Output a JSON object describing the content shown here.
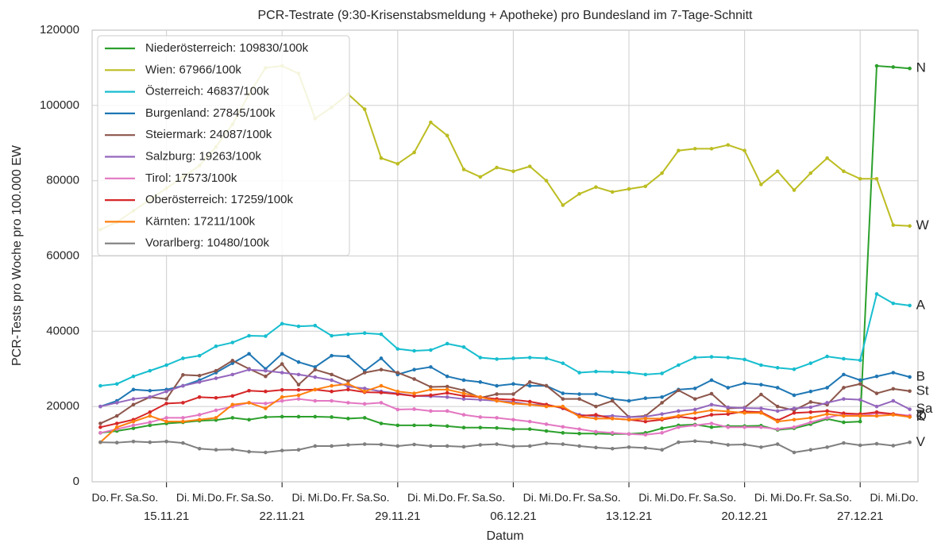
{
  "chart_data": {
    "type": "line",
    "title": "PCR-Testrate (9:30-Krisenstabsmeldung + Apotheke) pro Bundesland im 7-Tage-Schnitt",
    "xlabel": "Datum",
    "ylabel": "PCR-Tests pro Woche pro 100.000 EW",
    "x": [
      "2021-11-11",
      "2021-11-12",
      "2021-11-13",
      "2021-11-14",
      "2021-11-15",
      "2021-11-16",
      "2021-11-17",
      "2021-11-18",
      "2021-11-19",
      "2021-11-20",
      "2021-11-21",
      "2021-11-22",
      "2021-11-23",
      "2021-11-24",
      "2021-11-25",
      "2021-11-26",
      "2021-11-27",
      "2021-11-28",
      "2021-11-29",
      "2021-11-30",
      "2021-12-01",
      "2021-12-02",
      "2021-12-03",
      "2021-12-04",
      "2021-12-05",
      "2021-12-06",
      "2021-12-07",
      "2021-12-08",
      "2021-12-09",
      "2021-12-10",
      "2021-12-11",
      "2021-12-12",
      "2021-12-13",
      "2021-12-14",
      "2021-12-15",
      "2021-12-16",
      "2021-12-17",
      "2021-12-18",
      "2021-12-19",
      "2021-12-20",
      "2021-12-21",
      "2021-12-22",
      "2021-12-23",
      "2021-12-24",
      "2021-12-25",
      "2021-12-26",
      "2021-12-27",
      "2021-12-28",
      "2021-12-29",
      "2021-12-30"
    ],
    "xlim": [
      "2021-11-10T12:00:00Z",
      "2021-12-30T12:00:00Z"
    ],
    "xticks": [
      {
        "value": "2021-11-15",
        "label": "15.11.21"
      },
      {
        "value": "2021-11-22",
        "label": "22.11.21"
      },
      {
        "value": "2021-11-29",
        "label": "29.11.21"
      },
      {
        "value": "2021-12-06",
        "label": "06.12.21"
      },
      {
        "value": "2021-12-13",
        "label": "13.12.21"
      },
      {
        "value": "2021-12-20",
        "label": "20.12.21"
      },
      {
        "value": "2021-12-27",
        "label": "27.12.21"
      }
    ],
    "xticks_minor": [
      {
        "value": "2021-11-11",
        "label": "Do."
      },
      {
        "value": "2021-11-12",
        "label": "Fr."
      },
      {
        "value": "2021-11-13",
        "label": "Sa."
      },
      {
        "value": "2021-11-14",
        "label": "So."
      },
      {
        "value": "2021-11-16",
        "label": "Di."
      },
      {
        "value": "2021-11-17",
        "label": "Mi."
      },
      {
        "value": "2021-11-18",
        "label": "Do."
      },
      {
        "value": "2021-11-19",
        "label": "Fr."
      },
      {
        "value": "2021-11-20",
        "label": "Sa."
      },
      {
        "value": "2021-11-21",
        "label": "So."
      },
      {
        "value": "2021-11-23",
        "label": "Di."
      },
      {
        "value": "2021-11-24",
        "label": "Mi."
      },
      {
        "value": "2021-11-25",
        "label": "Do."
      },
      {
        "value": "2021-11-26",
        "label": "Fr."
      },
      {
        "value": "2021-11-27",
        "label": "Sa."
      },
      {
        "value": "2021-11-28",
        "label": "So."
      },
      {
        "value": "2021-11-30",
        "label": "Di."
      },
      {
        "value": "2021-12-01",
        "label": "Mi."
      },
      {
        "value": "2021-12-02",
        "label": "Do."
      },
      {
        "value": "2021-12-03",
        "label": "Fr."
      },
      {
        "value": "2021-12-04",
        "label": "Sa."
      },
      {
        "value": "2021-12-05",
        "label": "So."
      },
      {
        "value": "2021-12-07",
        "label": "Di."
      },
      {
        "value": "2021-12-08",
        "label": "Mi."
      },
      {
        "value": "2021-12-09",
        "label": "Do."
      },
      {
        "value": "2021-12-10",
        "label": "Fr."
      },
      {
        "value": "2021-12-11",
        "label": "Sa."
      },
      {
        "value": "2021-12-12",
        "label": "So."
      },
      {
        "value": "2021-12-14",
        "label": "Di."
      },
      {
        "value": "2021-12-15",
        "label": "Mi."
      },
      {
        "value": "2021-12-16",
        "label": "Do."
      },
      {
        "value": "2021-12-17",
        "label": "Fr."
      },
      {
        "value": "2021-12-18",
        "label": "Sa."
      },
      {
        "value": "2021-12-19",
        "label": "So."
      },
      {
        "value": "2021-12-21",
        "label": "Di."
      },
      {
        "value": "2021-12-22",
        "label": "Mi."
      },
      {
        "value": "2021-12-23",
        "label": "Do."
      },
      {
        "value": "2021-12-24",
        "label": "Fr."
      },
      {
        "value": "2021-12-25",
        "label": "Sa."
      },
      {
        "value": "2021-12-26",
        "label": "So."
      },
      {
        "value": "2021-12-28",
        "label": "Di."
      },
      {
        "value": "2021-12-29",
        "label": "Mi."
      },
      {
        "value": "2021-12-30",
        "label": "Do."
      }
    ],
    "ylim": [
      0,
      120000
    ],
    "yticks": [
      0,
      20000,
      40000,
      60000,
      80000,
      100000,
      120000
    ],
    "grid": true,
    "legend": "upper left",
    "series": [
      {
        "name": "Niederösterreich: 109830/100k",
        "label": "N",
        "color": "#2ca02c",
        "values": [
          13000,
          13500,
          14200,
          15000,
          15500,
          15800,
          16200,
          16400,
          17000,
          16500,
          17200,
          17300,
          17300,
          17300,
          17200,
          16800,
          17000,
          15500,
          15000,
          15000,
          15000,
          14800,
          14400,
          14400,
          14300,
          14000,
          14000,
          13500,
          13000,
          12800,
          12800,
          12700,
          12700,
          13000,
          14200,
          15000,
          15200,
          14500,
          14800,
          14800,
          14900,
          13800,
          14200,
          15300,
          16700,
          15800,
          16000,
          110500,
          110200,
          109830
        ]
      },
      {
        "name": "Wien: 67966/100k",
        "label": "W",
        "color": "#bcbd22",
        "values": [
          67000,
          69000,
          72000,
          75000,
          78000,
          81000,
          84000,
          89000,
          95000,
          103000,
          110000,
          110500,
          108500,
          96500,
          99500,
          103000,
          99000,
          86000,
          84500,
          87500,
          95500,
          92000,
          83000,
          81000,
          83500,
          82500,
          83800,
          80000,
          73500,
          76500,
          78300,
          77000,
          77800,
          78500,
          82000,
          88000,
          88500,
          88500,
          89500,
          88000,
          79000,
          82500,
          77500,
          82000,
          86000,
          82500,
          80500,
          80500,
          68200,
          67966
        ]
      },
      {
        "name": "Österreich: 46837/100k",
        "label": "A",
        "color": "#17becf",
        "values": [
          25500,
          26000,
          28000,
          29500,
          31000,
          32800,
          33500,
          36000,
          37000,
          38800,
          38700,
          42000,
          41300,
          41500,
          38800,
          39200,
          39500,
          39200,
          35300,
          34800,
          35000,
          36700,
          35800,
          33000,
          32600,
          32800,
          33000,
          32800,
          31500,
          29000,
          29300,
          29200,
          29000,
          28500,
          28800,
          31000,
          33000,
          33200,
          33000,
          32500,
          31000,
          30300,
          29900,
          31500,
          33300,
          32700,
          32300,
          49900,
          47400,
          46837
        ]
      },
      {
        "name": "Burgenland: 27845/100k",
        "label": "B",
        "color": "#1f77b4",
        "values": [
          20000,
          21500,
          24500,
          24200,
          24500,
          25500,
          27000,
          29000,
          31500,
          34000,
          30000,
          34000,
          31800,
          30500,
          33500,
          33300,
          29500,
          32800,
          28500,
          29800,
          30500,
          28000,
          27000,
          26500,
          25500,
          26000,
          25500,
          25500,
          23500,
          23300,
          23300,
          22000,
          21500,
          22200,
          22500,
          24500,
          24800,
          27000,
          25000,
          26200,
          25800,
          25000,
          23000,
          24000,
          25000,
          28500,
          27000,
          28000,
          29000,
          27845
        ]
      },
      {
        "name": "Steiermark: 24087/100k",
        "label": "St",
        "color": "#8c564b",
        "values": [
          15500,
          17500,
          20500,
          22500,
          22000,
          28400,
          28200,
          29500,
          32200,
          30000,
          28000,
          31300,
          25800,
          29800,
          28500,
          26700,
          29000,
          29800,
          29000,
          27300,
          25200,
          25300,
          24300,
          22300,
          23300,
          23300,
          26500,
          25500,
          22000,
          22000,
          20000,
          21500,
          17200,
          17500,
          21000,
          24300,
          22000,
          23400,
          19500,
          19700,
          23200,
          20000,
          19000,
          21200,
          20500,
          25000,
          26000,
          23500,
          24700,
          24087
        ]
      },
      {
        "name": "Salzburg: 19263/100k",
        "label": "Sa",
        "color": "#9467bd",
        "values": [
          20000,
          21000,
          22000,
          22500,
          24000,
          25500,
          26500,
          27500,
          28500,
          29800,
          29500,
          29000,
          28500,
          27800,
          27000,
          25300,
          24800,
          24000,
          23500,
          22800,
          22700,
          22500,
          22000,
          21800,
          21500,
          21200,
          20500,
          20500,
          19500,
          17800,
          17400,
          17500,
          17200,
          17300,
          18000,
          18800,
          19200,
          20500,
          19800,
          19600,
          19500,
          18800,
          19500,
          19800,
          21000,
          22000,
          21800,
          20000,
          21500,
          19263
        ]
      },
      {
        "name": "Tirol: 17573/100k",
        "label": "T",
        "color": "#e377c2",
        "values": [
          13000,
          14000,
          15000,
          15800,
          17000,
          17000,
          17800,
          19000,
          20000,
          21000,
          20800,
          21500,
          22000,
          21500,
          21500,
          21000,
          20700,
          21000,
          19200,
          19300,
          18800,
          18800,
          17800,
          17200,
          17000,
          16500,
          16000,
          15300,
          14600,
          14000,
          13300,
          13000,
          12700,
          12500,
          13000,
          14500,
          15000,
          15500,
          14500,
          14500,
          14500,
          14000,
          14500,
          15800,
          17000,
          18000,
          17500,
          18200,
          18000,
          17573
        ]
      },
      {
        "name": "Oberösterreich: 17259/100k",
        "label": "O",
        "color": "#d62728",
        "values": [
          14500,
          15500,
          16500,
          18500,
          20800,
          21000,
          22500,
          22300,
          22800,
          24200,
          24000,
          24400,
          24400,
          24500,
          24000,
          24500,
          23800,
          23700,
          23300,
          22800,
          23000,
          23600,
          22800,
          22500,
          22000,
          21800,
          21300,
          20500,
          19600,
          17500,
          17800,
          16800,
          16500,
          16000,
          16500,
          17300,
          16800,
          17800,
          18000,
          18700,
          18500,
          16300,
          18300,
          18500,
          18800,
          18200,
          18000,
          18500,
          18000,
          17259
        ]
      },
      {
        "name": "Kärnten: 17211/100k",
        "label": "K",
        "color": "#ff7f0e",
        "values": [
          10500,
          14500,
          16000,
          17500,
          16000,
          16000,
          16500,
          17000,
          20500,
          21000,
          19500,
          22500,
          23000,
          24500,
          25500,
          26000,
          24000,
          25500,
          24000,
          23500,
          24500,
          24500,
          23500,
          22500,
          21500,
          20800,
          20500,
          20000,
          20000,
          17300,
          16800,
          16800,
          16500,
          16800,
          16800,
          17500,
          18300,
          19000,
          18700,
          18300,
          18300,
          16000,
          16500,
          17000,
          18000,
          17500,
          17500,
          17500,
          17800,
          17211
        ]
      },
      {
        "name": "Vorarlberg: 10480/100k",
        "label": "V",
        "color": "#7f7f7f",
        "values": [
          10500,
          10400,
          10700,
          10500,
          10700,
          10300,
          8800,
          8500,
          8600,
          8000,
          7800,
          8300,
          8500,
          9500,
          9500,
          9800,
          10000,
          9900,
          9500,
          9900,
          9500,
          9500,
          9300,
          9800,
          10000,
          9400,
          9500,
          10200,
          10000,
          9500,
          9100,
          8800,
          9200,
          9000,
          8500,
          10500,
          10800,
          10500,
          9800,
          9900,
          9200,
          10000,
          7800,
          8500,
          9200,
          10300,
          9700,
          10100,
          9600,
          10480
        ]
      }
    ]
  }
}
